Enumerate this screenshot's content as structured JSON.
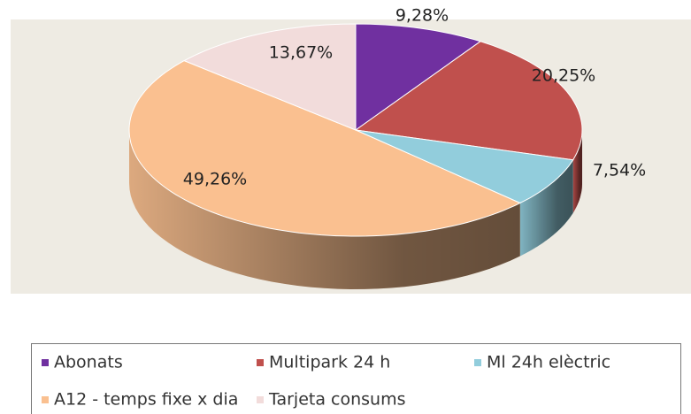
{
  "chart_data": {
    "type": "pie",
    "categories": [
      "Abonats",
      "Multipark 24 h",
      "Ml 24h elèctric",
      "A12 - temps fixe x dia",
      "Tarjeta consums"
    ],
    "values": [
      9.28,
      20.25,
      7.54,
      49.26,
      13.67
    ],
    "value_labels": [
      "9,28%",
      "20,25%",
      "7,54%",
      "49,26%",
      "13,67%"
    ],
    "colors": [
      "#7030a0",
      "#c0504d",
      "#92cddc",
      "#fac090",
      "#f2dcdb"
    ]
  }
}
